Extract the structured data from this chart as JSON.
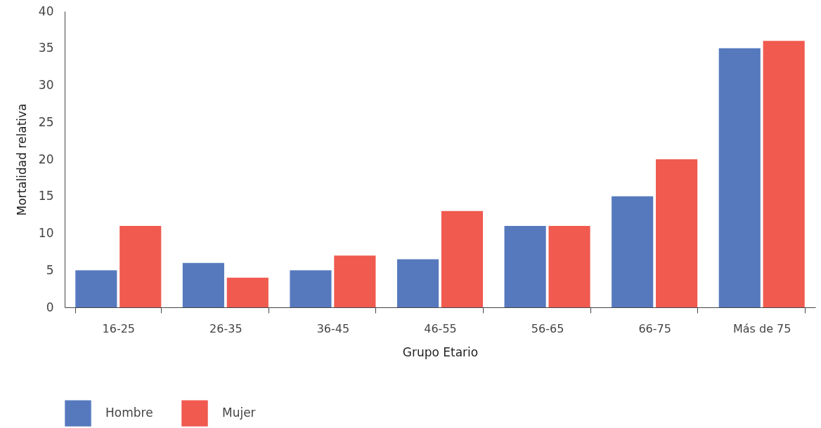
{
  "chart_data": {
    "type": "bar",
    "xlabel": "Grupo Etario",
    "ylabel": "Mortalidad relativa",
    "categories": [
      "16-25",
      "26-35",
      "36-45",
      "46-55",
      "56-65",
      "66-75",
      "Más de 75"
    ],
    "series": [
      {
        "name": "Hombre",
        "color": "#5679be",
        "values": [
          5,
          6,
          5,
          6.5,
          11,
          15,
          35
        ]
      },
      {
        "name": "Mujer",
        "color": "#f05a4f",
        "values": [
          11,
          4,
          7,
          13,
          11,
          20,
          36
        ]
      }
    ],
    "ylim": [
      0,
      40
    ],
    "yticks": [
      0,
      5,
      10,
      15,
      20,
      25,
      30,
      35,
      40
    ],
    "grid": false,
    "legend": "bottom"
  }
}
